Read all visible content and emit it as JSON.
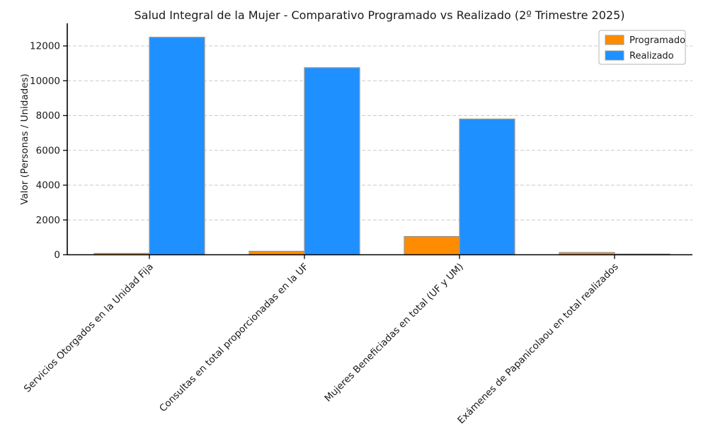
{
  "chart_data": {
    "type": "bar",
    "title": "Salud Integral de la Mujer - Comparativo Programado vs Realizado (2º Trimestre 2025)",
    "ylabel": "Valor (Personas / Unidades)",
    "xlabel": "",
    "categories": [
      "Servicios Otorgados en la Unidad Fija",
      "Consultas en total proporcionadas en la UF",
      "Mujeres Beneficiadas en total (UF y UM)",
      "Exámenes de Papanicolaou en total realizados"
    ],
    "series": [
      {
        "name": "Programado",
        "color": "#FF8C00",
        "values": [
          80,
          200,
          1050,
          130
        ]
      },
      {
        "name": "Realizado",
        "color": "#1E90FF",
        "values": [
          12500,
          10750,
          7800,
          40
        ]
      }
    ],
    "ylim": [
      0,
      13300
    ],
    "yticks": [
      0,
      2000,
      4000,
      6000,
      8000,
      10000,
      12000
    ],
    "grid": "horizontal-dashed",
    "grid_color": "#c9c9c9",
    "bar_edge_color": "#9a9a9a",
    "x_tick_rotation_deg": 45,
    "legend_position": "upper-right",
    "background_color": "#ffffff",
    "text_color": "#1a1a1a"
  }
}
